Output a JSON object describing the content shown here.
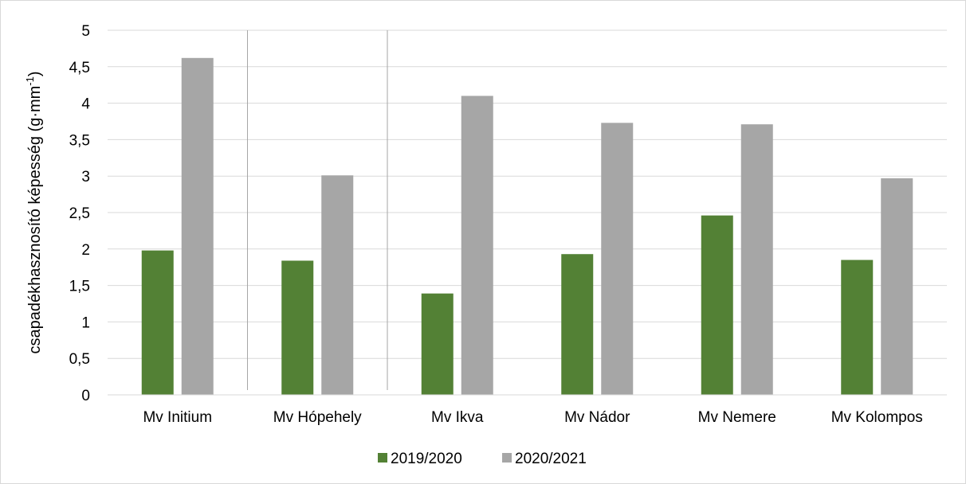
{
  "chart_data": {
    "type": "bar",
    "title": "",
    "xlabel": "",
    "ylabel": "csapadékhasznosító képesség (g·mm",
    "ylabel_sup": "-1",
    "ylabel_end": ")",
    "ylim": [
      0,
      5
    ],
    "yticks": [
      0,
      0.5,
      1,
      1.5,
      2,
      2.5,
      3,
      3.5,
      4,
      4.5,
      5
    ],
    "ytick_labels": [
      "0",
      "0,5",
      "1",
      "1,5",
      "2",
      "2,5",
      "3",
      "3,5",
      "4",
      "4,5",
      "5"
    ],
    "categories": [
      "Mv Initium",
      "Mv Hópehely",
      "Mv Ikva",
      "Mv Nádor",
      "Mv Nemere",
      "Mv Kolompos"
    ],
    "series": [
      {
        "name": "2019/2020",
        "color": "#538135",
        "values": [
          1.98,
          1.84,
          1.39,
          1.93,
          2.46,
          1.85
        ]
      },
      {
        "name": "2020/2021",
        "color": "#a6a6a6",
        "values": [
          4.62,
          3.01,
          4.1,
          3.73,
          3.71,
          2.97
        ]
      }
    ],
    "grid": true,
    "legend": "bottom"
  }
}
